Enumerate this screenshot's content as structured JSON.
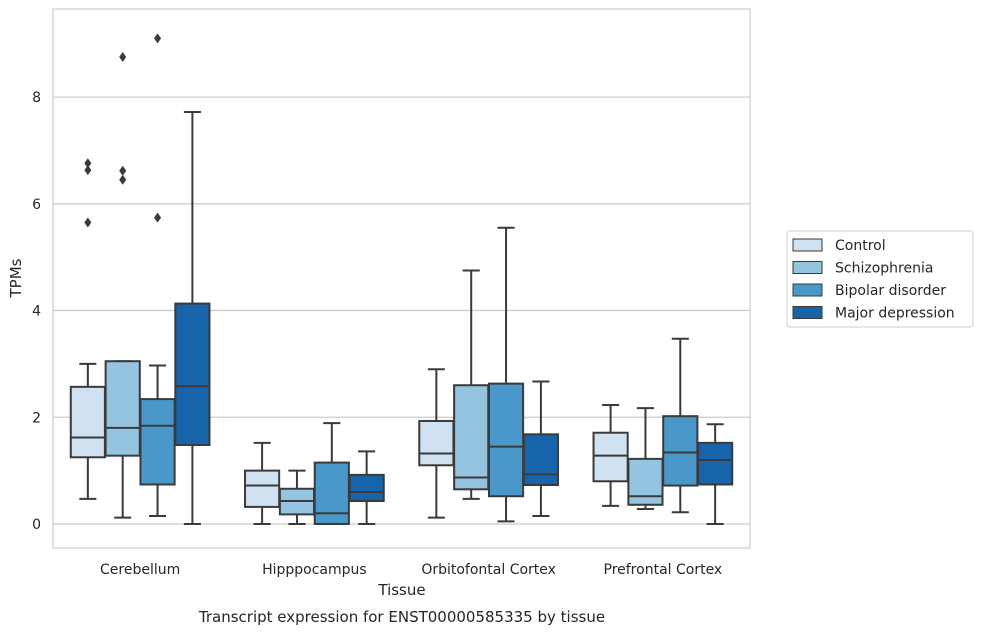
{
  "chart_data": {
    "type": "box",
    "xlabel": "Tissue",
    "ylabel": "TPMs",
    "caption": "Transcript expression for ENST00000585335 by tissue",
    "ylim": [
      -0.45,
      9.65
    ],
    "yticks": [
      "0",
      "2",
      "4",
      "6",
      "8"
    ],
    "categories": [
      "Cerebellum",
      "Hipppocampus",
      "Orbitofontal Cortex",
      "Prefrontal Cortex"
    ],
    "grid": "horizontal",
    "legend_position": "right",
    "series": [
      {
        "name": "Control",
        "color": "#d0e1f2",
        "boxes": [
          {
            "whisker_low": 0.47,
            "q1": 1.25,
            "median": 1.62,
            "q3": 2.57,
            "whisker_high": 3.0,
            "outliers": [
              5.65,
              6.63,
              6.76
            ]
          },
          {
            "whisker_low": 0.0,
            "q1": 0.32,
            "median": 0.72,
            "q3": 1.0,
            "whisker_high": 1.52,
            "outliers": []
          },
          {
            "whisker_low": 0.12,
            "q1": 1.1,
            "median": 1.32,
            "q3": 1.93,
            "whisker_high": 2.9,
            "outliers": []
          },
          {
            "whisker_low": 0.34,
            "q1": 0.8,
            "median": 1.28,
            "q3": 1.71,
            "whisker_high": 2.23,
            "outliers": []
          }
        ]
      },
      {
        "name": "Schizophrenia",
        "color": "#94c4df",
        "boxes": [
          {
            "whisker_low": 0.12,
            "q1": 1.28,
            "median": 1.8,
            "q3": 3.05,
            "whisker_high": 3.05,
            "outliers": [
              6.45,
              6.62,
              8.75
            ]
          },
          {
            "whisker_low": 0.0,
            "q1": 0.18,
            "median": 0.43,
            "q3": 0.66,
            "whisker_high": 1.0,
            "outliers": []
          },
          {
            "whisker_low": 0.47,
            "q1": 0.65,
            "median": 0.87,
            "q3": 2.6,
            "whisker_high": 4.75,
            "outliers": []
          },
          {
            "whisker_low": 0.28,
            "q1": 0.36,
            "median": 0.52,
            "q3": 1.22,
            "whisker_high": 2.17,
            "outliers": []
          }
        ]
      },
      {
        "name": "Bipolar disorder",
        "color": "#4a98c9",
        "boxes": [
          {
            "whisker_low": 0.15,
            "q1": 0.74,
            "median": 1.84,
            "q3": 2.34,
            "whisker_high": 2.97,
            "outliers": [
              5.74,
              9.1
            ]
          },
          {
            "whisker_low": 0.0,
            "q1": 0.0,
            "median": 0.2,
            "q3": 1.15,
            "whisker_high": 1.89,
            "outliers": []
          },
          {
            "whisker_low": 0.05,
            "q1": 0.52,
            "median": 1.45,
            "q3": 2.63,
            "whisker_high": 5.55,
            "outliers": []
          },
          {
            "whisker_low": 0.22,
            "q1": 0.72,
            "median": 1.34,
            "q3": 2.02,
            "whisker_high": 3.47,
            "outliers": []
          }
        ]
      },
      {
        "name": "Major depression",
        "color": "#1764ab",
        "boxes": [
          {
            "whisker_low": 0.0,
            "q1": 1.48,
            "median": 2.58,
            "q3": 4.13,
            "whisker_high": 7.72,
            "outliers": []
          },
          {
            "whisker_low": 0.0,
            "q1": 0.43,
            "median": 0.6,
            "q3": 0.92,
            "whisker_high": 1.36,
            "outliers": []
          },
          {
            "whisker_low": 0.15,
            "q1": 0.73,
            "median": 0.93,
            "q3": 1.68,
            "whisker_high": 2.67,
            "outliers": []
          },
          {
            "whisker_low": 0.0,
            "q1": 0.74,
            "median": 1.2,
            "q3": 1.52,
            "whisker_high": 1.87,
            "outliers": []
          }
        ]
      }
    ]
  }
}
